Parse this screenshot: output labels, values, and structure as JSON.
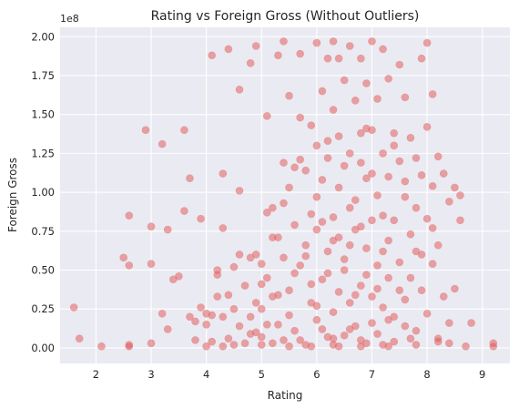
{
  "chart_data": {
    "type": "scatter",
    "title": "Rating vs Foreign Gross (Without Outliers)",
    "xlabel": "Rating",
    "ylabel": "Foreign Gross",
    "y_offset_label": "1e8",
    "xlim": [
      1.35,
      9.5
    ],
    "ylim": [
      -0.1,
      2.06
    ],
    "x_ticks": [
      2,
      3,
      4,
      5,
      6,
      7,
      8,
      9
    ],
    "x_tick_labels": [
      "2",
      "3",
      "4",
      "5",
      "6",
      "7",
      "8",
      "9"
    ],
    "y_ticks": [
      0.0,
      0.25,
      0.5,
      0.75,
      1.0,
      1.25,
      1.5,
      1.75,
      2.0
    ],
    "y_tick_labels": [
      "0.00",
      "0.25",
      "0.50",
      "0.75",
      "1.00",
      "1.25",
      "1.50",
      "1.75",
      "2.00"
    ],
    "grid": true,
    "colors": {
      "point": "#e05252",
      "background": "#eaeaf2",
      "grid": "#ffffff"
    },
    "series": [
      {
        "points": [
          [
            1.6,
            0.26
          ],
          [
            1.7,
            0.06
          ],
          [
            2.1,
            0.01
          ],
          [
            2.5,
            0.58
          ],
          [
            2.6,
            0.85
          ],
          [
            2.6,
            0.53
          ],
          [
            2.6,
            0.02
          ],
          [
            2.6,
            0.01
          ],
          [
            2.9,
            1.4
          ],
          [
            3.0,
            0.78
          ],
          [
            3.0,
            0.54
          ],
          [
            3.0,
            0.03
          ],
          [
            3.2,
            1.31
          ],
          [
            3.2,
            0.22
          ],
          [
            3.3,
            0.76
          ],
          [
            3.3,
            0.12
          ],
          [
            3.4,
            0.44
          ],
          [
            3.5,
            0.46
          ],
          [
            3.6,
            1.4
          ],
          [
            3.6,
            0.88
          ],
          [
            3.7,
            1.09
          ],
          [
            3.7,
            0.2
          ],
          [
            3.8,
            0.17
          ],
          [
            3.8,
            0.05
          ],
          [
            3.9,
            0.83
          ],
          [
            3.9,
            0.26
          ],
          [
            4.0,
            0.22
          ],
          [
            4.0,
            0.15
          ],
          [
            4.1,
            1.88
          ],
          [
            4.1,
            0.21
          ],
          [
            4.1,
            0.04
          ],
          [
            4.2,
            0.5
          ],
          [
            4.2,
            0.47
          ],
          [
            4.2,
            0.33
          ],
          [
            4.3,
            1.12
          ],
          [
            4.3,
            0.77
          ],
          [
            4.3,
            0.2
          ],
          [
            4.4,
            1.92
          ],
          [
            4.4,
            0.34
          ],
          [
            4.4,
            0.06
          ],
          [
            4.5,
            0.52
          ],
          [
            4.5,
            0.25
          ],
          [
            4.6,
            1.66
          ],
          [
            4.6,
            1.01
          ],
          [
            4.6,
            0.6
          ],
          [
            4.6,
            0.14
          ],
          [
            4.7,
            0.4
          ],
          [
            4.7,
            0.03
          ],
          [
            4.8,
            1.83
          ],
          [
            4.8,
            0.58
          ],
          [
            4.8,
            0.2
          ],
          [
            4.9,
            1.94
          ],
          [
            4.9,
            0.6
          ],
          [
            4.9,
            0.1
          ],
          [
            5.0,
            0.54
          ],
          [
            5.0,
            0.25
          ],
          [
            5.0,
            0.02
          ],
          [
            5.1,
            1.49
          ],
          [
            5.1,
            0.87
          ],
          [
            5.1,
            0.45
          ],
          [
            5.2,
            0.9
          ],
          [
            5.2,
            0.33
          ],
          [
            5.3,
            1.88
          ],
          [
            5.3,
            0.71
          ],
          [
            5.3,
            0.15
          ],
          [
            5.4,
            1.97
          ],
          [
            5.4,
            1.19
          ],
          [
            5.4,
            0.58
          ],
          [
            5.4,
            0.05
          ],
          [
            5.5,
            1.62
          ],
          [
            5.5,
            1.03
          ],
          [
            5.5,
            0.37
          ],
          [
            5.6,
            1.16
          ],
          [
            5.6,
            0.79
          ],
          [
            5.6,
            0.11
          ],
          [
            5.7,
            1.89
          ],
          [
            5.7,
            1.48
          ],
          [
            5.7,
            0.53
          ],
          [
            5.8,
            1.14
          ],
          [
            5.8,
            0.66
          ],
          [
            5.8,
            0.02
          ],
          [
            5.9,
            1.43
          ],
          [
            5.9,
            0.86
          ],
          [
            5.9,
            0.29
          ],
          [
            6.0,
            1.96
          ],
          [
            6.0,
            1.3
          ],
          [
            6.0,
            0.76
          ],
          [
            6.0,
            0.18
          ],
          [
            6.1,
            1.65
          ],
          [
            6.1,
            1.08
          ],
          [
            6.1,
            0.44
          ],
          [
            6.2,
            1.86
          ],
          [
            6.2,
            1.22
          ],
          [
            6.2,
            0.62
          ],
          [
            6.2,
            0.07
          ],
          [
            6.3,
            1.97
          ],
          [
            6.3,
            1.53
          ],
          [
            6.3,
            0.84
          ],
          [
            6.3,
            0.23
          ],
          [
            6.4,
            1.86
          ],
          [
            6.4,
            1.36
          ],
          [
            6.4,
            0.71
          ],
          [
            6.4,
            0.01
          ],
          [
            6.5,
            1.72
          ],
          [
            6.5,
            1.17
          ],
          [
            6.5,
            0.5
          ],
          [
            6.6,
            1.94
          ],
          [
            6.6,
            1.25
          ],
          [
            6.6,
            0.66
          ],
          [
            6.6,
            0.12
          ],
          [
            6.7,
            1.59
          ],
          [
            6.7,
            0.95
          ],
          [
            6.7,
            0.34
          ],
          [
            6.8,
            1.86
          ],
          [
            6.8,
            1.38
          ],
          [
            6.8,
            0.78
          ],
          [
            6.8,
            0.05
          ],
          [
            6.9,
            1.7
          ],
          [
            6.9,
            1.09
          ],
          [
            6.9,
            0.47
          ],
          [
            7.0,
            1.97
          ],
          [
            7.0,
            1.4
          ],
          [
            7.0,
            0.82
          ],
          [
            7.0,
            0.16
          ],
          [
            7.1,
            1.6
          ],
          [
            7.1,
            0.98
          ],
          [
            7.1,
            0.38
          ],
          [
            7.2,
            1.92
          ],
          [
            7.2,
            1.25
          ],
          [
            7.2,
            0.62
          ],
          [
            7.2,
            0.02
          ],
          [
            7.3,
            1.73
          ],
          [
            7.3,
            1.1
          ],
          [
            7.3,
            0.45
          ],
          [
            7.4,
            1.38
          ],
          [
            7.4,
            0.82
          ],
          [
            7.4,
            0.2
          ],
          [
            7.5,
            1.82
          ],
          [
            7.5,
            1.2
          ],
          [
            7.5,
            0.55
          ],
          [
            7.6,
            1.61
          ],
          [
            7.6,
            0.97
          ],
          [
            7.6,
            0.31
          ],
          [
            7.7,
            1.35
          ],
          [
            7.7,
            0.73
          ],
          [
            7.7,
            0.06
          ],
          [
            7.8,
            1.22
          ],
          [
            7.8,
            0.62
          ],
          [
            7.8,
            0.11
          ],
          [
            7.9,
            1.86
          ],
          [
            7.9,
            1.11
          ],
          [
            7.9,
            0.37
          ],
          [
            8.0,
            1.96
          ],
          [
            8.0,
            1.42
          ],
          [
            8.0,
            0.83
          ],
          [
            8.0,
            0.22
          ],
          [
            8.1,
            1.63
          ],
          [
            8.1,
            1.04
          ],
          [
            8.1,
            0.54
          ],
          [
            8.2,
            1.23
          ],
          [
            8.2,
            0.66
          ],
          [
            8.2,
            0.04
          ],
          [
            8.3,
            1.12
          ],
          [
            8.3,
            0.33
          ],
          [
            8.4,
            0.94
          ],
          [
            8.4,
            0.16
          ],
          [
            8.5,
            1.03
          ],
          [
            8.5,
            0.38
          ],
          [
            8.6,
            0.98
          ],
          [
            8.6,
            0.82
          ],
          [
            8.7,
            0.01
          ],
          [
            8.8,
            0.16
          ],
          [
            9.2,
            0.03
          ],
          [
            9.2,
            0.01
          ],
          [
            6.3,
            0.06
          ],
          [
            6.5,
            0.08
          ],
          [
            6.9,
            0.03
          ],
          [
            7.1,
            0.09
          ],
          [
            6.1,
            0.12
          ],
          [
            5.7,
            0.05
          ],
          [
            6.7,
            0.14
          ],
          [
            7.4,
            0.04
          ],
          [
            6.0,
            0.27
          ],
          [
            6.6,
            0.29
          ],
          [
            7.3,
            0.18
          ],
          [
            5.9,
            0.41
          ],
          [
            6.4,
            0.36
          ],
          [
            7.0,
            0.33
          ],
          [
            7.6,
            0.14
          ],
          [
            5.5,
            0.21
          ],
          [
            6.2,
            0.48
          ],
          [
            6.8,
            0.4
          ],
          [
            7.2,
            0.26
          ],
          [
            5.3,
            0.34
          ],
          [
            6.5,
            0.57
          ],
          [
            7.1,
            0.53
          ],
          [
            7.5,
            0.37
          ],
          [
            5.8,
            0.59
          ],
          [
            6.3,
            0.69
          ],
          [
            6.9,
            0.64
          ],
          [
            7.7,
            0.45
          ],
          [
            5.6,
            0.48
          ],
          [
            6.1,
            0.81
          ],
          [
            6.7,
            0.76
          ],
          [
            7.3,
            0.69
          ],
          [
            7.9,
            0.6
          ],
          [
            5.4,
            0.93
          ],
          [
            6.0,
            0.97
          ],
          [
            6.6,
            0.9
          ],
          [
            7.2,
            0.85
          ],
          [
            7.8,
            0.9
          ],
          [
            5.2,
            0.71
          ],
          [
            6.4,
            1.03
          ],
          [
            7.0,
            1.12
          ],
          [
            7.6,
            1.07
          ],
          [
            5.7,
            1.21
          ],
          [
            6.8,
            1.19
          ],
          [
            7.4,
            1.3
          ],
          [
            8.1,
            0.77
          ],
          [
            6.2,
            1.33
          ],
          [
            6.9,
            1.41
          ],
          [
            5.0,
            0.41
          ],
          [
            4.9,
            0.29
          ],
          [
            5.1,
            0.15
          ],
          [
            4.8,
            0.09
          ],
          [
            5.0,
            0.07
          ],
          [
            5.2,
            0.03
          ],
          [
            5.5,
            0.01
          ],
          [
            5.9,
            0.01
          ],
          [
            6.3,
            0.02
          ],
          [
            6.8,
            0.01
          ],
          [
            7.3,
            0.01
          ],
          [
            7.8,
            0.02
          ],
          [
            8.2,
            0.06
          ],
          [
            8.4,
            0.03
          ],
          [
            4.5,
            0.02
          ],
          [
            4.3,
            0.01
          ],
          [
            4.0,
            0.01
          ]
        ]
      }
    ]
  }
}
